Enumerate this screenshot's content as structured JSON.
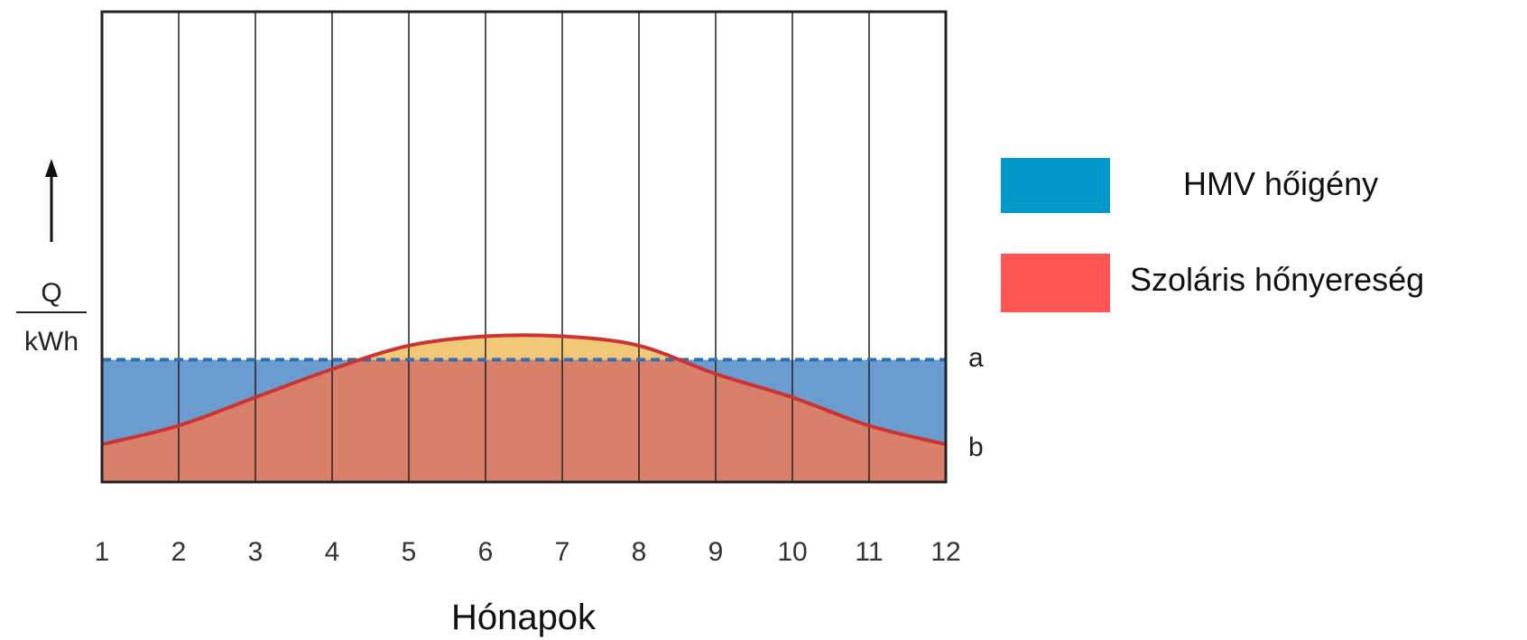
{
  "chart_data": {
    "type": "area",
    "xlabel": "Hónapok",
    "ylabel_numerator": "Q",
    "ylabel_denominator": "kWh",
    "x_ticks": [
      "1",
      "2",
      "3",
      "4",
      "5",
      "6",
      "7",
      "8",
      "9",
      "10",
      "11",
      "12"
    ],
    "xlim": [
      1,
      12
    ],
    "ylim": [
      0,
      1
    ],
    "grid": true,
    "legend_placement": "right",
    "legend": [
      {
        "label": "HMV hőigény",
        "color": "#0099cc"
      },
      {
        "label": "Szoláris hőnyereség",
        "color": "#ff5555"
      }
    ],
    "demand": {
      "label": "a",
      "value": 0.26,
      "color": "#6b9ccf",
      "line_color": "#2f6db5"
    },
    "solar": {
      "label": "b",
      "x": [
        1,
        2,
        3,
        4,
        5,
        6,
        7,
        8,
        9,
        10,
        11,
        12
      ],
      "values": [
        0.08,
        0.12,
        0.18,
        0.24,
        0.29,
        0.31,
        0.31,
        0.29,
        0.23,
        0.18,
        0.12,
        0.08
      ],
      "fill_color": "#d9806b",
      "line_color": "#cc3333",
      "surplus_color": "#f0c878"
    }
  }
}
